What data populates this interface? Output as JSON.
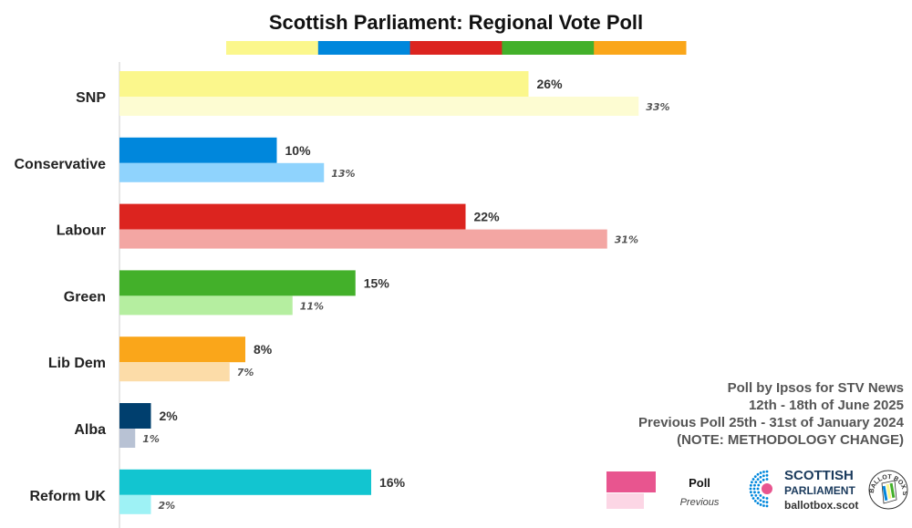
{
  "chart_data": {
    "type": "bar",
    "orientation": "horizontal",
    "title": "Scottish Parliament: Regional Vote Poll",
    "categories": [
      "SNP",
      "Conservative",
      "Labour",
      "Green",
      "Lib Dem",
      "Alba",
      "Reform UK"
    ],
    "series": [
      {
        "name": "Poll",
        "values": [
          26,
          10,
          22,
          15,
          8,
          2,
          16
        ]
      },
      {
        "name": "Previous",
        "values": [
          33,
          13,
          31,
          11,
          7,
          1,
          2
        ]
      }
    ],
    "value_labels": {
      "poll": [
        "26%",
        "10%",
        "22%",
        "15%",
        "8%",
        "2%",
        "16%"
      ],
      "previous": [
        "33%",
        "13%",
        "31%",
        "11%",
        "7%",
        "1%",
        "2%"
      ]
    },
    "colors": {
      "poll": [
        "#fbf78c",
        "#0087dc",
        "#dc241f",
        "#43b02a",
        "#faa61a",
        "#003f6e",
        "#12c5d0"
      ],
      "previous": [
        "#fdfcd2",
        "#8fd3fd",
        "#f3a6a3",
        "#b5eea0",
        "#fcdca8",
        "#b8c2d4",
        "#9ef2f5"
      ]
    },
    "title_stripe_colors": [
      "#fbf78c",
      "#0087dc",
      "#dc241f",
      "#43b02a",
      "#faa61a"
    ],
    "xlim": [
      0,
      40
    ],
    "xlabel": "",
    "ylabel": "",
    "grid": false,
    "legend": {
      "position": "bottom-right",
      "poll_color": "#e8558f",
      "previous_color": "#fcd6e5"
    }
  },
  "source": {
    "line1": "Poll by Ipsos for STV News",
    "line2": "12th - 18th of June 2025",
    "line3": "Previous Poll 25th - 31st of January 2024",
    "line4": "(NOTE: METHODOLOGY CHANGE)"
  },
  "legend": {
    "poll_label": "Poll",
    "previous_label": "Previous"
  },
  "logos": {
    "parliament_line1": "SCOTTISH",
    "parliament_line2": "PARLIAMENT",
    "site": "ballotbox.scot",
    "badge_text": "BALLOT BOX SCOTLAND"
  }
}
